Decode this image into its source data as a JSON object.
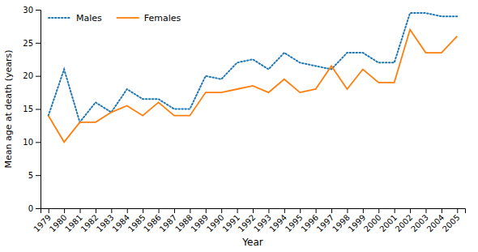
{
  "chart_data": {
    "type": "line",
    "xlabel": "Year",
    "ylabel": "Mean age at death (years)",
    "x": [
      1979,
      1980,
      1981,
      1982,
      1983,
      1984,
      1985,
      1986,
      1987,
      1988,
      1989,
      1990,
      1991,
      1992,
      1993,
      1994,
      1995,
      1996,
      1997,
      1998,
      1999,
      2000,
      2001,
      2002,
      2003,
      2004,
      2005
    ],
    "series": [
      {
        "name": "Males",
        "line_style": "dotted",
        "values": [
          14,
          21,
          13,
          16,
          14.5,
          18,
          16.5,
          16.5,
          15,
          15,
          20,
          19.5,
          22,
          22.5,
          21,
          23.5,
          22,
          21.5,
          21,
          23.5,
          23.5,
          22,
          22,
          29.5,
          29.5,
          29,
          29
        ]
      },
      {
        "name": "Females",
        "line_style": "solid",
        "values": [
          14,
          10,
          13,
          13,
          14.5,
          15.5,
          14,
          16,
          14,
          14,
          17.5,
          17.5,
          18,
          18.5,
          17.5,
          19.5,
          17.5,
          18,
          21.5,
          18,
          21,
          19,
          19,
          27,
          23.5,
          23.5,
          26
        ]
      }
    ],
    "xlim": [
      1978.5,
      2005.5
    ],
    "xticks": [
      1979,
      1980,
      1981,
      1982,
      1983,
      1984,
      1985,
      1986,
      1987,
      1988,
      1989,
      1990,
      1991,
      1992,
      1993,
      1994,
      1995,
      1996,
      1997,
      1998,
      1999,
      2000,
      2001,
      2002,
      2003,
      2004,
      2005
    ],
    "ylim": [
      0,
      30
    ],
    "yticks": [
      0,
      5,
      10,
      15,
      20,
      25,
      30
    ],
    "grid": false,
    "legend": "upper left"
  }
}
